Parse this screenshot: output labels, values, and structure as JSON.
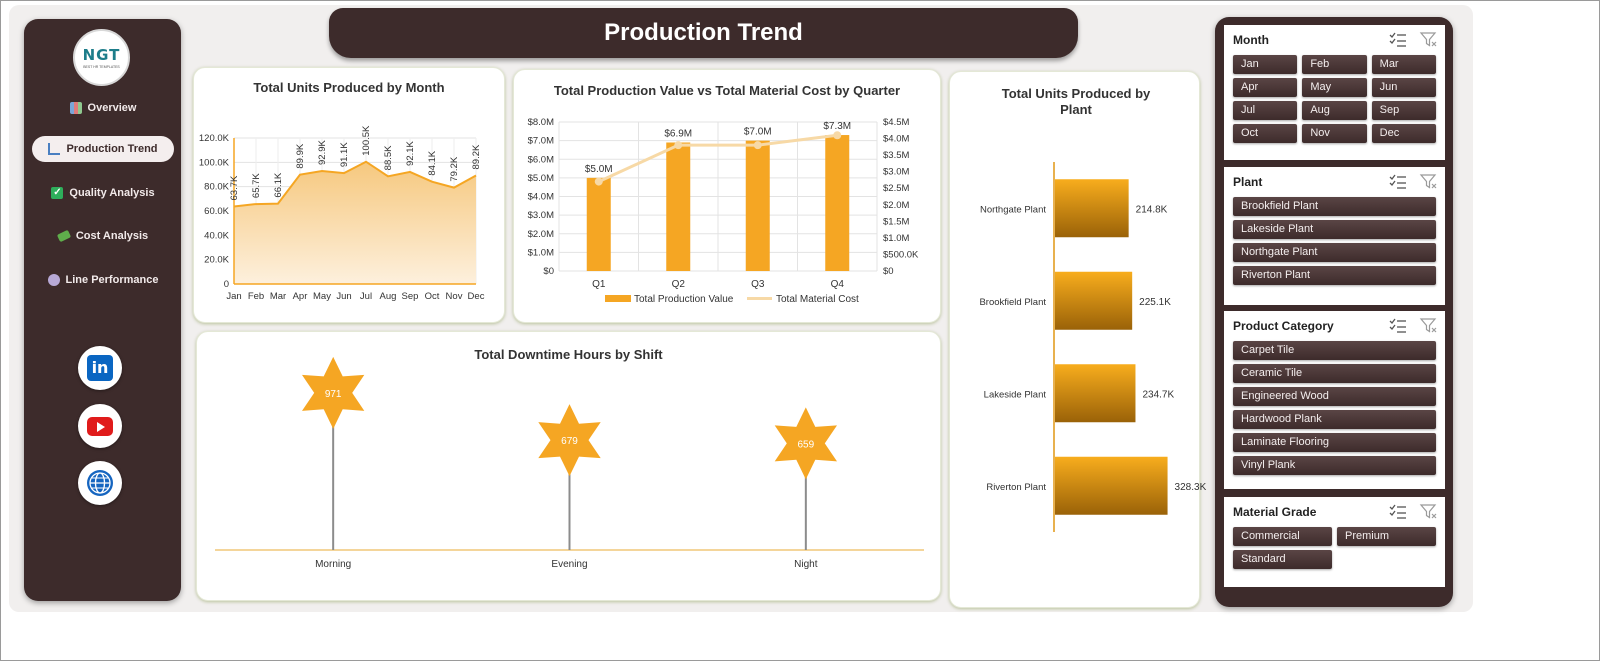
{
  "logo": {
    "mark": "NGT",
    "tagline": "BEST HR TEMPLATES"
  },
  "nav": {
    "items": [
      {
        "label": "Overview",
        "icon": "bar-chart-icon",
        "active": false
      },
      {
        "label": "Production Trend",
        "icon": "line-chart-icon",
        "active": true
      },
      {
        "label": "Quality Analysis",
        "icon": "checkbox-icon",
        "active": false
      },
      {
        "label": "Cost Analysis",
        "icon": "money-icon",
        "active": false
      },
      {
        "label": "Line Performance",
        "icon": "gear-icon",
        "active": false
      }
    ],
    "social": [
      "linkedin-icon",
      "youtube-icon",
      "globe-icon"
    ]
  },
  "page": {
    "title": "Production Trend"
  },
  "colors": {
    "accent": "#F5A623",
    "dark": "#3D2B2B",
    "light_line": "#F7D9A6"
  },
  "chart_data": [
    {
      "type": "area",
      "title": "Total Units Produced by Month",
      "categories": [
        "Jan",
        "Feb",
        "Mar",
        "Apr",
        "May",
        "Jun",
        "Jul",
        "Aug",
        "Sep",
        "Oct",
        "Nov",
        "Dec"
      ],
      "values": [
        63.7,
        65.7,
        66.1,
        89.9,
        92.9,
        91.1,
        100.5,
        88.5,
        92.1,
        84.1,
        79.2,
        89.2
      ],
      "data_labels": [
        "63.7K",
        "65.7K",
        "66.1K",
        "89.9K",
        "92.9K",
        "91.1K",
        "100.5K",
        "88.5K",
        "92.1K",
        "84.1K",
        "79.2K",
        "89.2K"
      ],
      "yticks": [
        "0",
        "20.0K",
        "40.0K",
        "60.0K",
        "80.0K",
        "100.0K",
        "120.0K"
      ],
      "ylim": [
        0,
        120
      ],
      "grid": true
    },
    {
      "type": "bar",
      "title": "Total Production Value vs Total Material Cost by Quarter",
      "categories": [
        "Q1",
        "Q2",
        "Q3",
        "Q4"
      ],
      "series": [
        {
          "name": "Total Production Value",
          "kind": "bar",
          "axis": "left",
          "values": [
            5.0,
            6.9,
            7.0,
            7.3
          ],
          "data_labels": [
            "$5.0M",
            "$6.9M",
            "$7.0M",
            "$7.3M"
          ]
        },
        {
          "name": "Total Material Cost",
          "kind": "line",
          "axis": "right",
          "values": [
            2.7,
            3.8,
            3.8,
            4.1
          ]
        }
      ],
      "yticks_left": [
        "$0",
        "$1.0M",
        "$2.0M",
        "$3.0M",
        "$4.0M",
        "$5.0M",
        "$6.0M",
        "$7.0M",
        "$8.0M"
      ],
      "yticks_right": [
        "$0",
        "$500.0K",
        "$1.0M",
        "$1.5M",
        "$2.0M",
        "$2.5M",
        "$3.0M",
        "$3.5M",
        "$4.0M",
        "$4.5M"
      ],
      "ylim_left": [
        0,
        8
      ],
      "ylim_right": [
        0,
        4.5
      ],
      "legend": "bottom",
      "grid": true
    },
    {
      "type": "bar",
      "orientation": "horizontal",
      "title": "Total Units Produced by Plant",
      "categories": [
        "Northgate Plant",
        "Brookfield Plant",
        "Lakeside Plant",
        "Riverton Plant"
      ],
      "values": [
        214.8,
        225.1,
        234.7,
        328.3
      ],
      "data_labels": [
        "214.8K",
        "225.1K",
        "234.7K",
        "328.3K"
      ],
      "xlim": [
        0,
        350
      ]
    },
    {
      "type": "scatter",
      "marker": "star",
      "title": "Total Downtime Hours by Shift",
      "categories": [
        "Morning",
        "Evening",
        "Night"
      ],
      "values": [
        971,
        679,
        659
      ],
      "data_labels": [
        "971",
        "679",
        "659"
      ],
      "ylim": [
        0,
        1100
      ]
    }
  ],
  "slicers": [
    {
      "title": "Month",
      "columns": 3,
      "items": [
        "Jan",
        "Feb",
        "Mar",
        "Apr",
        "May",
        "Jun",
        "Jul",
        "Aug",
        "Sep",
        "Oct",
        "Nov",
        "Dec"
      ]
    },
    {
      "title": "Plant",
      "columns": 1,
      "items": [
        "Brookfield Plant",
        "Lakeside Plant",
        "Northgate Plant",
        "Riverton Plant"
      ]
    },
    {
      "title": "Product Category",
      "columns": 1,
      "items": [
        "Carpet Tile",
        "Ceramic Tile",
        "Engineered Wood",
        "Hardwood Plank",
        "Laminate Flooring",
        "Vinyl Plank"
      ]
    },
    {
      "title": "Material Grade",
      "columns": 2,
      "items": [
        "Commercial",
        "Premium",
        "Standard"
      ]
    }
  ]
}
